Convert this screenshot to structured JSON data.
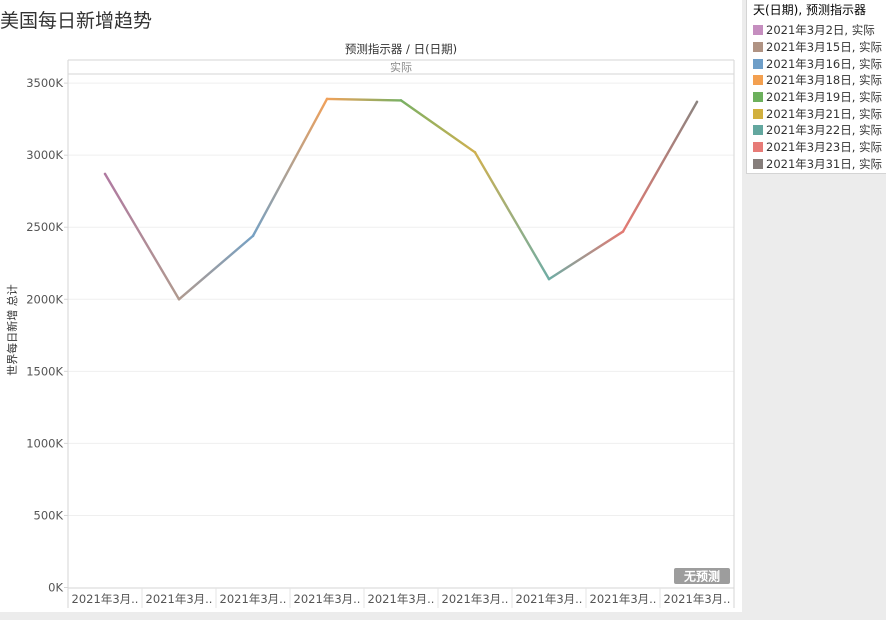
{
  "title": "美国每日新增趋势",
  "chart_data": {
    "type": "line",
    "title": "美国每日新增趋势",
    "column_header": "预测指示器 / 日(日期)",
    "pane_header": "实际",
    "ylabel": "世界每日新增 总计",
    "xlabel": "",
    "ylim": [
      0,
      3600000
    ],
    "y_ticks": [
      0,
      500000,
      1000000,
      1500000,
      2000000,
      2500000,
      3000000,
      3500000
    ],
    "y_tick_labels": [
      "0K",
      "500K",
      "1000K",
      "1500K",
      "2000K",
      "2500K",
      "3000K",
      "3500K"
    ],
    "categories": [
      "2021年3月..",
      "2021年3月..",
      "2021年3月..",
      "2021年3月..",
      "2021年3月..",
      "2021年3月..",
      "2021年3月..",
      "2021年3月..",
      "2021年3月.."
    ],
    "values": [
      2870000,
      2000000,
      2440000,
      3390000,
      3380000,
      3020000,
      2140000,
      2470000,
      3370000
    ],
    "segment_colors": [
      "#b07aa1",
      "#b09a8f",
      "#76a1c4",
      "#f1a15a",
      "#79b064",
      "#cfb050",
      "#6fada5",
      "#e37a73",
      "#8c8480"
    ],
    "no_forecast_badge": "无预测",
    "grid": true
  },
  "legend": {
    "title": "天(日期), 预测指示器",
    "items": [
      {
        "label": "2021年3月2日, 实际",
        "color": "#c58ebf"
      },
      {
        "label": "2021年3月15日, 实际",
        "color": "#b09383"
      },
      {
        "label": "2021年3月16日, 实际",
        "color": "#6e9ec8"
      },
      {
        "label": "2021年3月18日, 实际",
        "color": "#f3a050"
      },
      {
        "label": "2021年3月19日, 实际",
        "color": "#6cb05c"
      },
      {
        "label": "2021年3月21日, 实际",
        "color": "#d1b03e"
      },
      {
        "label": "2021年3月22日, 实际",
        "color": "#63a79f"
      },
      {
        "label": "2021年3月23日, 实际",
        "color": "#e77b77"
      },
      {
        "label": "2021年3月31日, 实际",
        "color": "#867e7b"
      }
    ]
  }
}
